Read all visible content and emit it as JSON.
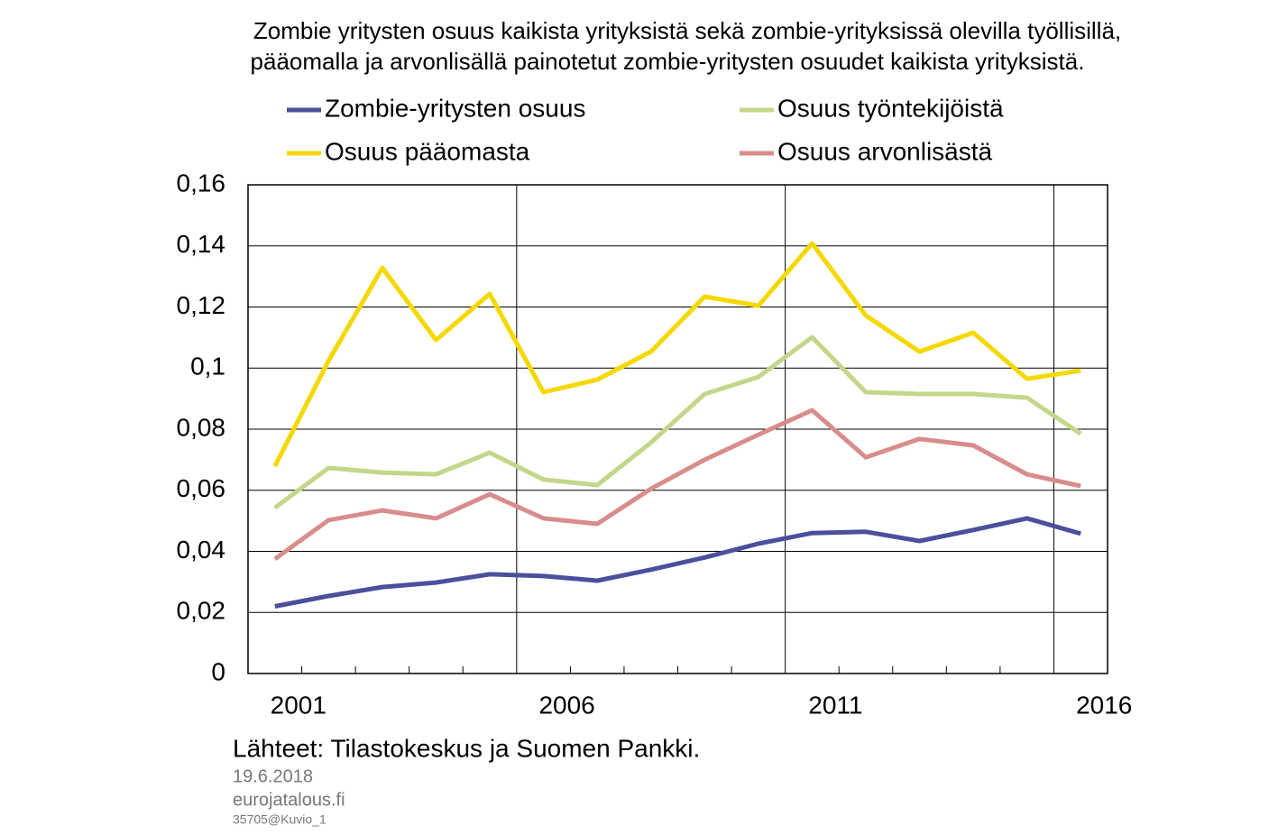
{
  "chart_data": {
    "type": "line",
    "title": [
      "Zombie yritysten osuus kaikista yrityksistä sekä zombie-yrityksissä olevilla työllisillä,",
      "pääomalla ja arvonlisällä painotetut zombie-yritysten osuudet kaikista yrityksistä."
    ],
    "categories": [
      "2001",
      null,
      null,
      null,
      null,
      "2006",
      null,
      null,
      null,
      null,
      "2011",
      null,
      null,
      null,
      null,
      "2016"
    ],
    "series": [
      {
        "name": "Zombie-yritysten osuus",
        "color": "#4b4f9c",
        "values": [
          0.022,
          0.0254,
          0.0283,
          0.0298,
          0.0325,
          0.0319,
          0.0304,
          0.034,
          0.038,
          0.0425,
          0.046,
          0.0464,
          0.0434,
          0.047,
          0.0508,
          0.0458
        ]
      },
      {
        "name": "Osuus työntekijöistä",
        "color": "#c3d68a",
        "values": [
          0.0543,
          0.0673,
          0.0658,
          0.0652,
          0.0723,
          0.0635,
          0.0617,
          0.0756,
          0.0915,
          0.0971,
          0.1101,
          0.0921,
          0.0915,
          0.0915,
          0.0903,
          0.0785
        ]
      },
      {
        "name": "Osuus pääomasta",
        "color": "#f5d800",
        "values": [
          0.0679,
          0.1024,
          0.1328,
          0.1092,
          0.1243,
          0.0921,
          0.0962,
          0.1054,
          0.1234,
          0.1204,
          0.1408,
          0.1172,
          0.1054,
          0.1116,
          0.0965,
          0.0992
        ]
      },
      {
        "name": "Osuus arvonlisästä",
        "color": "#d98c8c",
        "values": [
          0.0375,
          0.0502,
          0.0534,
          0.0508,
          0.0587,
          0.0508,
          0.049,
          0.0605,
          0.07,
          0.0782,
          0.0862,
          0.0708,
          0.0768,
          0.0747,
          0.0652,
          0.0614
        ]
      }
    ],
    "ylim": [
      0,
      0.16
    ],
    "yticks": [
      0,
      {
        "value": 0.02,
        "label": "0,02"
      },
      {
        "value": 0.04,
        "label": "0,04"
      },
      {
        "value": 0.06,
        "label": "0,06"
      },
      {
        "value": 0.08,
        "label": "0,08"
      },
      {
        "value": 0.1,
        "label": "0,1"
      },
      {
        "value": 0.12,
        "label": "0,12"
      },
      {
        "value": 0.14,
        "label": "0,14"
      },
      {
        "value": 0.16,
        "label": "0,16"
      }
    ],
    "grid": true,
    "notes": [
      "Lähteet: Tilastokeskus  ja Suomen Pankki.",
      "19.6.2018",
      "eurojatalous.fi",
      "35705@Kuvio_1"
    ]
  }
}
